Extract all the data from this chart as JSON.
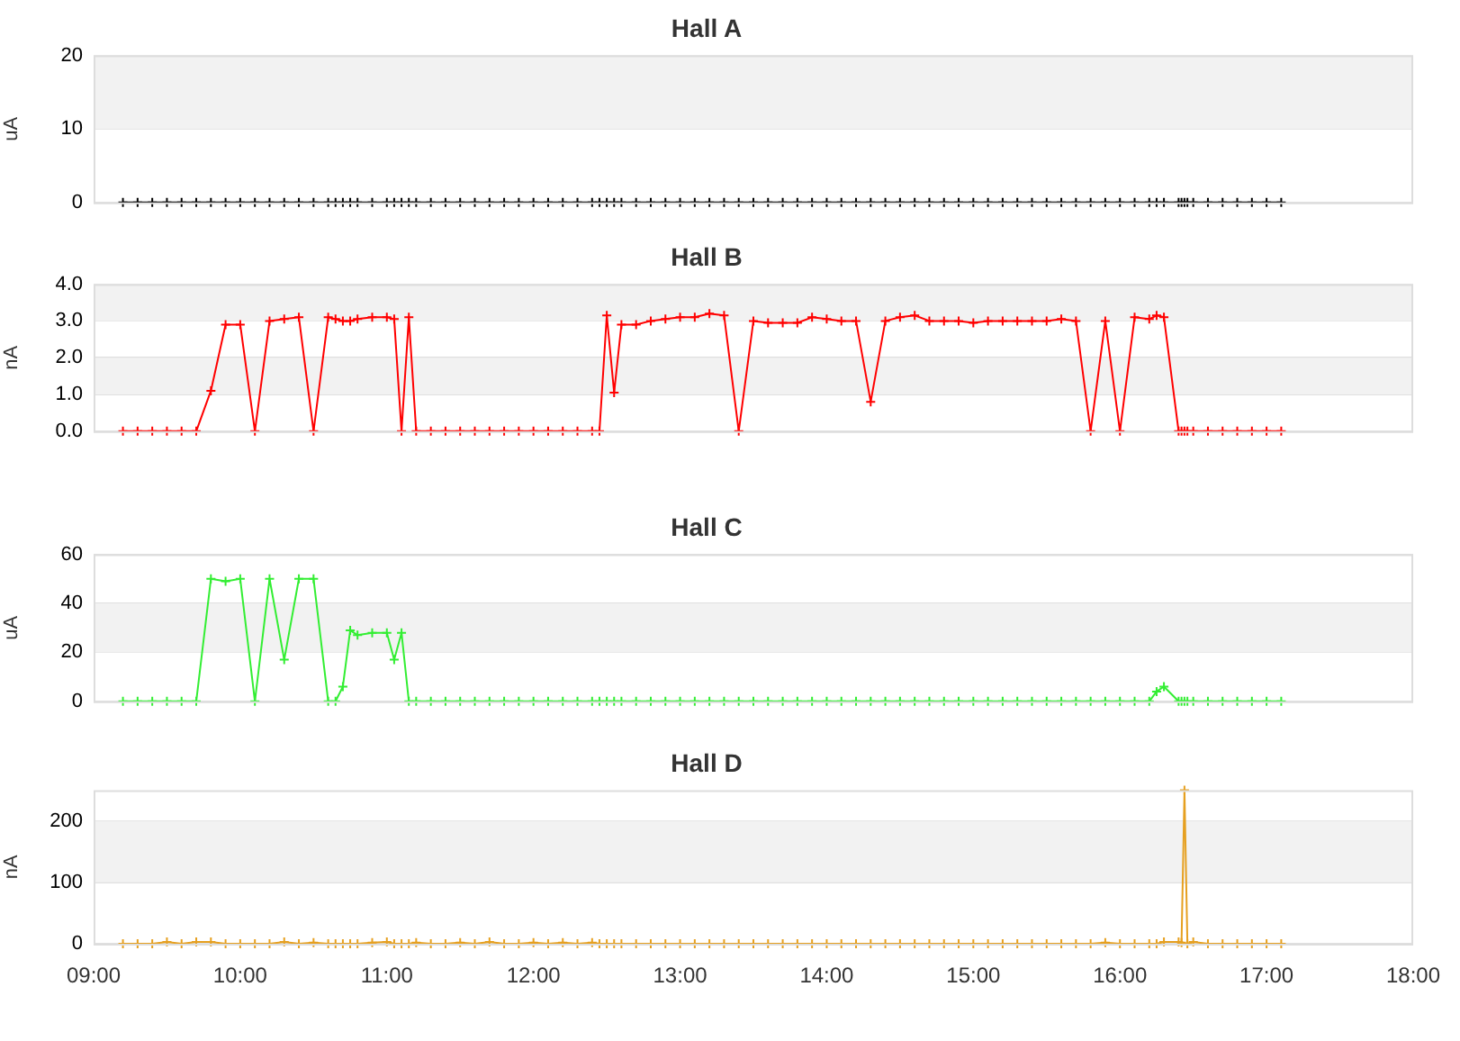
{
  "chart_data": [
    {
      "type": "line",
      "title": "Hall A",
      "ylabel": "uA",
      "x": [
        9.2,
        9.3,
        9.4,
        9.5,
        9.6,
        9.7,
        9.8,
        9.9,
        10.0,
        10.1,
        10.2,
        10.3,
        10.4,
        10.5,
        10.6,
        10.65,
        10.7,
        10.75,
        10.8,
        10.9,
        11.0,
        11.05,
        11.1,
        11.15,
        11.2,
        11.3,
        11.4,
        11.5,
        11.6,
        11.7,
        11.8,
        11.9,
        12.0,
        12.1,
        12.2,
        12.3,
        12.4,
        12.45,
        12.5,
        12.55,
        12.6,
        12.7,
        12.8,
        12.9,
        13.0,
        13.1,
        13.2,
        13.3,
        13.4,
        13.5,
        13.6,
        13.7,
        13.8,
        13.9,
        14.0,
        14.1,
        14.2,
        14.3,
        14.4,
        14.5,
        14.6,
        14.7,
        14.8,
        14.9,
        15.0,
        15.1,
        15.2,
        15.3,
        15.4,
        15.5,
        15.6,
        15.7,
        15.8,
        15.9,
        16.0,
        16.1,
        16.2,
        16.25,
        16.3,
        16.4,
        16.42,
        16.44,
        16.46,
        16.5,
        16.6,
        16.7,
        16.8,
        16.9,
        17.0,
        17.1
      ],
      "series": [
        {
          "color": "#000000",
          "values": [
            0,
            0,
            0,
            0,
            0,
            0,
            0,
            0,
            0,
            0,
            0,
            0,
            0,
            0,
            0,
            0,
            0,
            0,
            0,
            0,
            0,
            0,
            0,
            0,
            0,
            0,
            0,
            0,
            0,
            0,
            0,
            0,
            0,
            0,
            0,
            0,
            0,
            0,
            0,
            0,
            0,
            0,
            0,
            0,
            0,
            0,
            0,
            0,
            0,
            0,
            0,
            0,
            0,
            0,
            0,
            0,
            0,
            0,
            0,
            0,
            0,
            0,
            0,
            0,
            0,
            0,
            0,
            0,
            0,
            0,
            0,
            0,
            0,
            0,
            0,
            0,
            0,
            0,
            0,
            0,
            0,
            0,
            0,
            0,
            0,
            0,
            0,
            0,
            0,
            0
          ]
        }
      ],
      "xlim": [
        9,
        18
      ],
      "ylim": [
        0,
        20
      ],
      "yticks": [
        0,
        10,
        20
      ],
      "bands": [
        {
          "axis": "y",
          "from": 10,
          "to": 20,
          "color": "#f2f2f2"
        }
      ],
      "grid": "y",
      "legend": false,
      "marker": "cross",
      "tick_labels": "y"
    },
    {
      "type": "line",
      "title": "Hall B",
      "ylabel": "nA",
      "x": [
        9.2,
        9.3,
        9.4,
        9.5,
        9.6,
        9.7,
        9.8,
        9.9,
        10.0,
        10.1,
        10.2,
        10.3,
        10.4,
        10.5,
        10.6,
        10.65,
        10.7,
        10.75,
        10.8,
        10.9,
        11.0,
        11.05,
        11.1,
        11.15,
        11.2,
        11.3,
        11.4,
        11.5,
        11.6,
        11.7,
        11.8,
        11.9,
        12.0,
        12.1,
        12.2,
        12.3,
        12.4,
        12.45,
        12.5,
        12.55,
        12.6,
        12.7,
        12.8,
        12.9,
        13.0,
        13.1,
        13.2,
        13.3,
        13.4,
        13.5,
        13.6,
        13.7,
        13.8,
        13.9,
        14.0,
        14.1,
        14.2,
        14.3,
        14.4,
        14.5,
        14.6,
        14.7,
        14.8,
        14.9,
        15.0,
        15.1,
        15.2,
        15.3,
        15.4,
        15.5,
        15.6,
        15.7,
        15.8,
        15.9,
        16.0,
        16.1,
        16.2,
        16.25,
        16.3,
        16.4,
        16.42,
        16.44,
        16.46,
        16.5,
        16.6,
        16.7,
        16.8,
        16.9,
        17.0,
        17.1
      ],
      "series": [
        {
          "color": "#ff0000",
          "values": [
            0,
            0,
            0,
            0,
            0,
            0,
            1.1,
            2.9,
            2.9,
            0,
            3.0,
            3.05,
            3.1,
            0,
            3.1,
            3.05,
            3.0,
            3.0,
            3.05,
            3.1,
            3.1,
            3.05,
            0,
            3.1,
            0,
            0,
            0,
            0,
            0,
            0,
            0,
            0,
            0,
            0,
            0,
            0,
            0,
            0,
            3.15,
            1.05,
            2.9,
            2.9,
            3.0,
            3.05,
            3.1,
            3.1,
            3.2,
            3.15,
            0,
            3.0,
            2.95,
            2.95,
            2.95,
            3.1,
            3.05,
            3.0,
            3.0,
            0.8,
            3.0,
            3.1,
            3.15,
            3.0,
            3.0,
            3.0,
            2.95,
            3.0,
            3.0,
            3.0,
            3.0,
            3.0,
            3.05,
            3.0,
            0,
            3.0,
            0,
            3.1,
            3.05,
            3.15,
            3.1,
            0,
            0,
            0,
            0,
            0,
            0,
            0,
            0,
            0,
            0,
            0
          ]
        }
      ],
      "xlim": [
        9,
        18
      ],
      "ylim": [
        0,
        4
      ],
      "yticks": [
        {
          "value": 0,
          "label": "0.0"
        },
        {
          "value": 1,
          "label": "1.0"
        },
        {
          "value": 2,
          "label": "2.0"
        },
        {
          "value": 3,
          "label": "3.0"
        },
        {
          "value": 4,
          "label": "4.0"
        }
      ],
      "bands": [
        {
          "axis": "y",
          "from": 1,
          "to": 2,
          "color": "#f2f2f2"
        },
        {
          "axis": "y",
          "from": 3,
          "to": 4,
          "color": "#f2f2f2"
        }
      ],
      "grid": "y",
      "legend": false,
      "marker": "cross",
      "tick_labels": "y"
    },
    {
      "type": "line",
      "title": "Hall C",
      "ylabel": "uA",
      "x": [
        9.2,
        9.3,
        9.4,
        9.5,
        9.6,
        9.7,
        9.8,
        9.9,
        10.0,
        10.1,
        10.2,
        10.3,
        10.4,
        10.5,
        10.6,
        10.65,
        10.7,
        10.75,
        10.8,
        10.9,
        11.0,
        11.05,
        11.1,
        11.15,
        11.2,
        11.3,
        11.4,
        11.5,
        11.6,
        11.7,
        11.8,
        11.9,
        12.0,
        12.1,
        12.2,
        12.3,
        12.4,
        12.45,
        12.5,
        12.55,
        12.6,
        12.7,
        12.8,
        12.9,
        13.0,
        13.1,
        13.2,
        13.3,
        13.4,
        13.5,
        13.6,
        13.7,
        13.8,
        13.9,
        14.0,
        14.1,
        14.2,
        14.3,
        14.4,
        14.5,
        14.6,
        14.7,
        14.8,
        14.9,
        15.0,
        15.1,
        15.2,
        15.3,
        15.4,
        15.5,
        15.6,
        15.7,
        15.8,
        15.9,
        16.0,
        16.1,
        16.2,
        16.25,
        16.3,
        16.4,
        16.42,
        16.44,
        16.46,
        16.5,
        16.6,
        16.7,
        16.8,
        16.9,
        17.0,
        17.1
      ],
      "series": [
        {
          "color": "#33ee33",
          "values": [
            0,
            0,
            0,
            0,
            0,
            0,
            50,
            49,
            50,
            0,
            50,
            17,
            50,
            50,
            0,
            0,
            6,
            29,
            27,
            28,
            28,
            17,
            28,
            0,
            0,
            0,
            0,
            0,
            0,
            0,
            0,
            0,
            0,
            0,
            0,
            0,
            0,
            0,
            0,
            0,
            0,
            0,
            0,
            0,
            0,
            0,
            0,
            0,
            0,
            0,
            0,
            0,
            0,
            0,
            0,
            0,
            0,
            0,
            0,
            0,
            0,
            0,
            0,
            0,
            0,
            0,
            0,
            0,
            0,
            0,
            0,
            0,
            0,
            0,
            0,
            0,
            0,
            4,
            6,
            0,
            0,
            0,
            0,
            0,
            0,
            0,
            0,
            0,
            0,
            0
          ]
        }
      ],
      "xlim": [
        9,
        18
      ],
      "ylim": [
        0,
        60
      ],
      "yticks": [
        0,
        20,
        40,
        60
      ],
      "bands": [
        {
          "axis": "y",
          "from": 20,
          "to": 40,
          "color": "#f2f2f2"
        }
      ],
      "grid": "y",
      "legend": false,
      "marker": "cross",
      "tick_labels": "y"
    },
    {
      "type": "line",
      "title": "Hall D",
      "ylabel": "nA",
      "x": [
        9.2,
        9.3,
        9.4,
        9.5,
        9.6,
        9.7,
        9.8,
        9.9,
        10.0,
        10.1,
        10.2,
        10.3,
        10.4,
        10.5,
        10.6,
        10.65,
        10.7,
        10.75,
        10.8,
        10.9,
        11.0,
        11.05,
        11.1,
        11.15,
        11.2,
        11.3,
        11.4,
        11.5,
        11.6,
        11.7,
        11.8,
        11.9,
        12.0,
        12.1,
        12.2,
        12.3,
        12.4,
        12.45,
        12.5,
        12.55,
        12.6,
        12.7,
        12.8,
        12.9,
        13.0,
        13.1,
        13.2,
        13.3,
        13.4,
        13.5,
        13.6,
        13.7,
        13.8,
        13.9,
        14.0,
        14.1,
        14.2,
        14.3,
        14.4,
        14.5,
        14.6,
        14.7,
        14.8,
        14.9,
        15.0,
        15.1,
        15.2,
        15.3,
        15.4,
        15.5,
        15.6,
        15.7,
        15.8,
        15.9,
        16.0,
        16.1,
        16.2,
        16.25,
        16.3,
        16.4,
        16.42,
        16.44,
        16.46,
        16.5,
        16.6,
        16.7,
        16.8,
        16.9,
        17.0,
        17.1
      ],
      "series": [
        {
          "color": "#e6a020",
          "values": [
            0,
            0,
            0,
            3,
            0,
            3,
            3,
            0,
            0,
            0,
            0,
            3,
            0,
            2,
            0,
            0,
            0,
            0,
            0,
            2,
            3,
            0,
            0,
            0,
            2,
            0,
            0,
            2,
            0,
            3,
            0,
            0,
            2,
            0,
            2,
            0,
            2,
            0,
            0,
            0,
            0,
            0,
            0,
            0,
            0,
            0,
            0,
            0,
            0,
            0,
            0,
            0,
            0,
            0,
            0,
            0,
            0,
            0,
            0,
            0,
            0,
            0,
            0,
            0,
            0,
            0,
            0,
            0,
            0,
            0,
            0,
            0,
            0,
            2,
            0,
            0,
            0,
            0,
            3,
            3,
            2,
            250,
            0,
            3,
            0,
            0,
            0,
            0,
            0,
            0
          ]
        }
      ],
      "xlim": [
        9,
        18
      ],
      "xticks": [
        {
          "value": 9,
          "label": "09:00"
        },
        {
          "value": 10,
          "label": "10:00"
        },
        {
          "value": 11,
          "label": "11:00"
        },
        {
          "value": 12,
          "label": "12:00"
        },
        {
          "value": 13,
          "label": "13:00"
        },
        {
          "value": 14,
          "label": "14:00"
        },
        {
          "value": 15,
          "label": "15:00"
        },
        {
          "value": 16,
          "label": "16:00"
        },
        {
          "value": 17,
          "label": "17:00"
        },
        {
          "value": 18,
          "label": "18:00"
        }
      ],
      "ylim": [
        0,
        250
      ],
      "yticks": [
        0,
        100,
        200
      ],
      "bands": [
        {
          "axis": "y",
          "from": 100,
          "to": 200,
          "color": "#f2f2f2"
        }
      ],
      "grid": "y",
      "legend": false,
      "marker": "cross"
    }
  ]
}
